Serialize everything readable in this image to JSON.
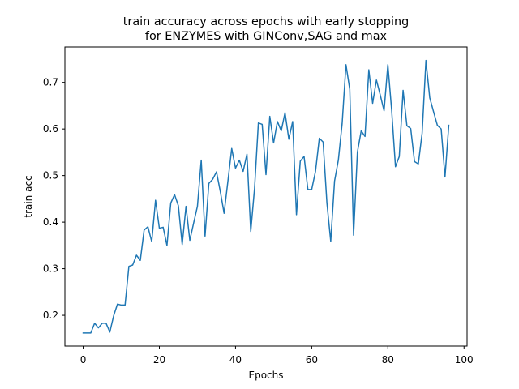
{
  "chart_data": {
    "type": "line",
    "title_lines": [
      "train accuracy across epochs with early stopping",
      "for ENZYMES with GINConv,SAG and max"
    ],
    "xlabel": "Epochs",
    "ylabel": "train acc",
    "xlim": [
      -4.8,
      100.8
    ],
    "ylim": [
      0.134,
      0.776
    ],
    "xticks": [
      0,
      20,
      40,
      60,
      80,
      100
    ],
    "yticks": [
      0.2,
      0.3,
      0.4,
      0.5,
      0.6,
      0.7
    ],
    "xtick_labels": [
      "0",
      "20",
      "40",
      "60",
      "80",
      "100"
    ],
    "ytick_labels": [
      "0.2",
      "0.3",
      "0.4",
      "0.5",
      "0.6",
      "0.7"
    ],
    "grid": false,
    "legend": "none",
    "line_color": "#1f77b4",
    "series": [
      {
        "x": [
          0,
          1,
          2,
          3,
          4,
          5,
          6,
          7,
          8,
          9,
          10,
          11,
          12,
          13,
          14,
          15,
          16,
          17,
          18,
          19,
          20,
          21,
          22,
          23,
          24,
          25,
          26,
          27,
          28,
          29,
          30,
          31,
          32,
          33,
          34,
          35,
          36,
          37,
          38,
          39,
          40,
          41,
          42,
          43,
          44,
          45,
          46,
          47,
          48,
          49,
          50,
          51,
          52,
          53,
          54,
          55,
          56,
          57,
          58,
          59,
          60,
          61,
          62,
          63,
          64,
          65,
          66,
          67,
          68,
          69,
          70,
          71,
          72,
          73,
          74,
          75,
          76,
          77,
          78,
          79,
          80,
          81,
          82,
          83,
          84,
          85,
          86,
          87,
          88,
          89,
          90,
          91,
          92,
          93,
          94,
          95,
          96
        ],
        "values": [
          0.162,
          0.162,
          0.162,
          0.183,
          0.173,
          0.183,
          0.183,
          0.164,
          0.199,
          0.224,
          0.222,
          0.222,
          0.305,
          0.308,
          0.329,
          0.318,
          0.383,
          0.39,
          0.358,
          0.447,
          0.387,
          0.389,
          0.35,
          0.441,
          0.459,
          0.435,
          0.352,
          0.434,
          0.361,
          0.398,
          0.434,
          0.533,
          0.37,
          0.483,
          0.492,
          0.508,
          0.466,
          0.419,
          0.488,
          0.558,
          0.516,
          0.533,
          0.509,
          0.546,
          0.38,
          0.473,
          0.613,
          0.61,
          0.502,
          0.627,
          0.57,
          0.616,
          0.596,
          0.635,
          0.578,
          0.616,
          0.416,
          0.531,
          0.541,
          0.47,
          0.47,
          0.509,
          0.58,
          0.572,
          0.441,
          0.359,
          0.488,
          0.533,
          0.612,
          0.738,
          0.685,
          0.372,
          0.55,
          0.596,
          0.584,
          0.727,
          0.655,
          0.705,
          0.673,
          0.639,
          0.738,
          0.64,
          0.519,
          0.541,
          0.683,
          0.607,
          0.601,
          0.53,
          0.525,
          0.591,
          0.747,
          0.667,
          0.637,
          0.608,
          0.6,
          0.497,
          0.608
        ]
      }
    ]
  }
}
